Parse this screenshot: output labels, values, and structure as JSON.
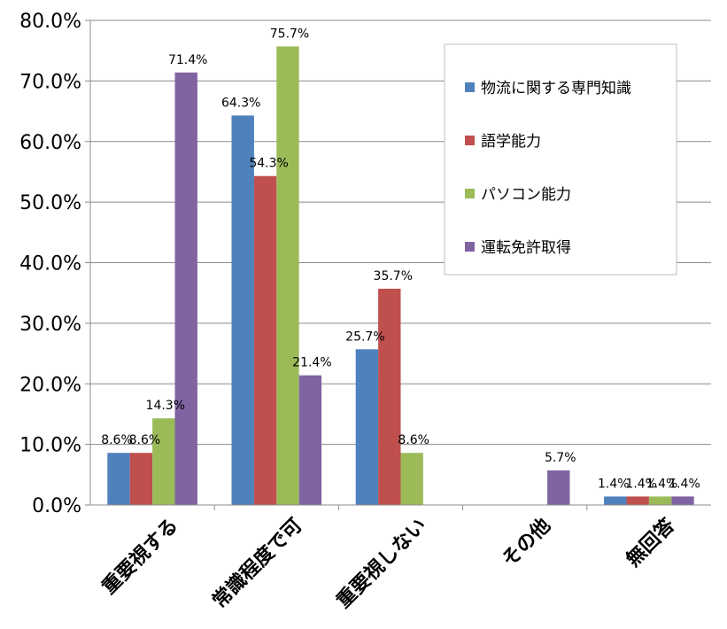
{
  "chart_data": {
    "type": "bar",
    "categories": [
      "重要視する",
      "常識程度で可",
      "重要視しない",
      "その他",
      "無回答"
    ],
    "series": [
      {
        "name": "物流に関する専門知識",
        "color": "#4F81BD",
        "values": [
          8.6,
          64.3,
          25.7,
          0,
          1.4
        ],
        "labels": [
          "8.6%",
          "64.3%",
          "25.7%",
          "",
          "1.4%"
        ]
      },
      {
        "name": "語学能力",
        "color": "#C0504D",
        "values": [
          8.6,
          54.3,
          35.7,
          0,
          1.4
        ],
        "labels": [
          "8.6%",
          "54.3%",
          "35.7%",
          "",
          "1.4%"
        ]
      },
      {
        "name": "パソコン能力",
        "color": "#9BBB59",
        "values": [
          14.3,
          75.7,
          8.6,
          0,
          1.4
        ],
        "labels": [
          "14.3%",
          "75.7%",
          "8.6%",
          "",
          "1.4%"
        ]
      },
      {
        "name": "運転免許取得",
        "color": "#8064A2",
        "values": [
          71.4,
          21.4,
          0,
          5.7,
          1.4
        ],
        "labels": [
          "71.4%",
          "21.4%",
          "",
          "5.7%",
          "1.4%"
        ]
      }
    ],
    "yticks": [
      "0.0%",
      "10.0%",
      "20.0%",
      "30.0%",
      "40.0%",
      "50.0%",
      "60.0%",
      "70.0%",
      "80.0%"
    ],
    "ylim": [
      0,
      80
    ],
    "grid": true,
    "legend_position": "top-right",
    "title": "",
    "xlabel": "",
    "ylabel": ""
  }
}
